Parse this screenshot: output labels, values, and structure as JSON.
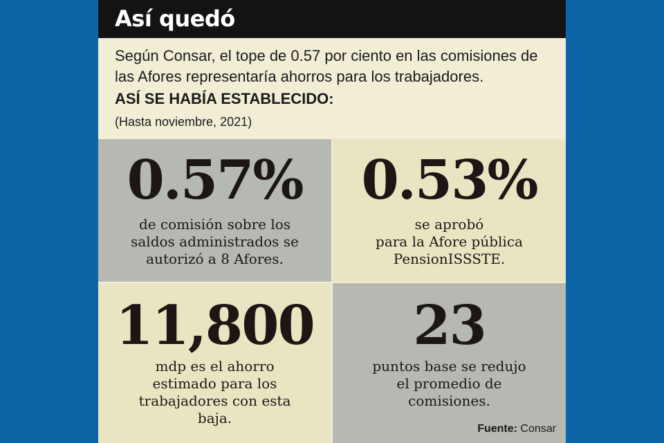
{
  "header": {
    "title": "Así quedó"
  },
  "intro": {
    "text": "Según Consar, el tope de 0.57 por ciento en las comisiones de las Afores representaría ahorros para los trabajadores.",
    "subhead": "ASÍ SE HABÍA ESTABLECIDO:",
    "note": "(Hasta noviembre, 2021)"
  },
  "stats": [
    {
      "value": "0.57%",
      "lines": [
        "de comisión sobre los",
        "saldos administrados se",
        "autorizó a 8 Afores."
      ]
    },
    {
      "value": "0.53%",
      "lines": [
        "se aprobó",
        "para la Afore pública",
        "PensionISSSTE."
      ]
    },
    {
      "value": "11,800",
      "lines": [
        "mdp es el ahorro",
        "estimado para los",
        "trabajadores con esta",
        "baja."
      ]
    },
    {
      "value": "23",
      "lines": [
        "puntos base se redujo",
        "el promedio de",
        "comisiones."
      ]
    }
  ],
  "source": {
    "label": "Fuente:",
    "name": "Consar"
  },
  "colors": {
    "background": "#0d65a8",
    "header": "#131313",
    "panel": "#f2eed6",
    "grey_cell": "#b6b8b2",
    "cream_cell": "#e9e5c2"
  }
}
